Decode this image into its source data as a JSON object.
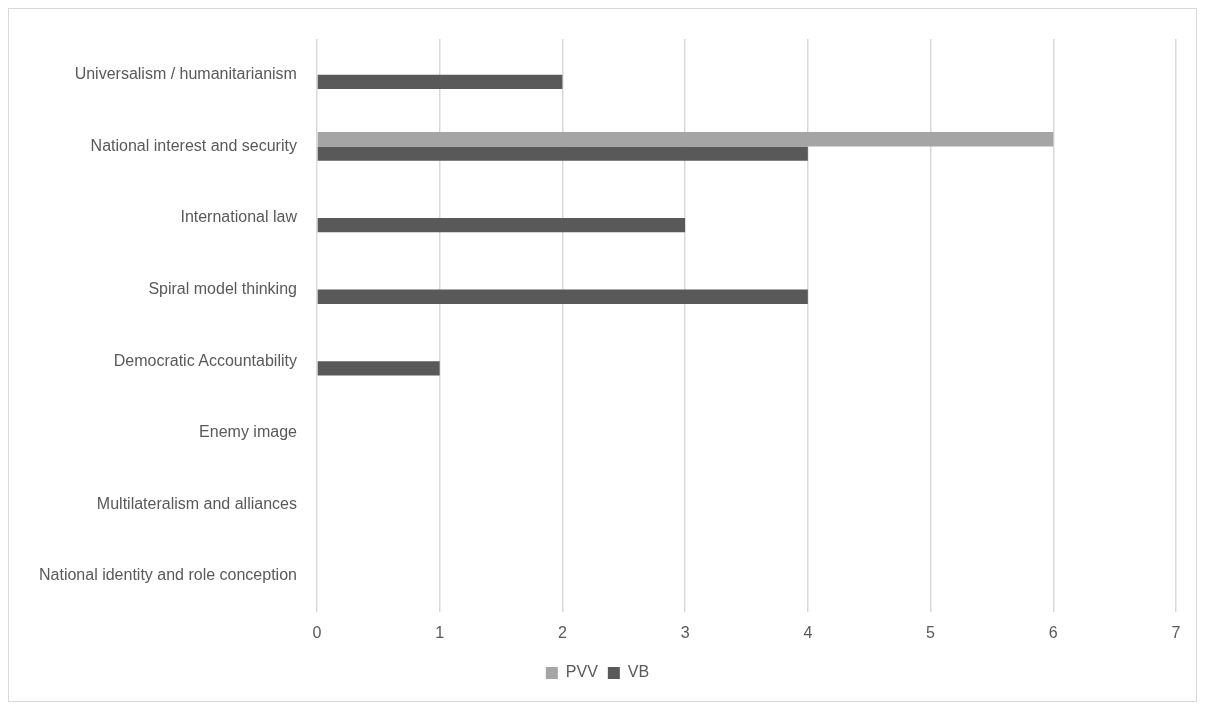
{
  "chart_data": {
    "type": "bar",
    "orientation": "horizontal",
    "categories": [
      "Universalism / humanitarianism",
      "National interest and security",
      "International law",
      "Spiral model thinking",
      "Democratic Accountability",
      "Enemy image",
      "Multilateralism and alliances",
      "National identity and role conception"
    ],
    "series": [
      {
        "name": "PVV",
        "color": "#a5a5a5",
        "values": [
          0,
          6,
          0,
          0,
          0,
          0,
          0,
          0
        ]
      },
      {
        "name": "VB",
        "color": "#595959",
        "values": [
          2,
          4,
          3,
          4,
          1,
          0,
          0,
          0
        ]
      }
    ],
    "xlim": [
      0,
      7
    ],
    "xticks": [
      0,
      1,
      2,
      3,
      4,
      5,
      6,
      7
    ],
    "grid": "x",
    "legend": "bottom"
  }
}
